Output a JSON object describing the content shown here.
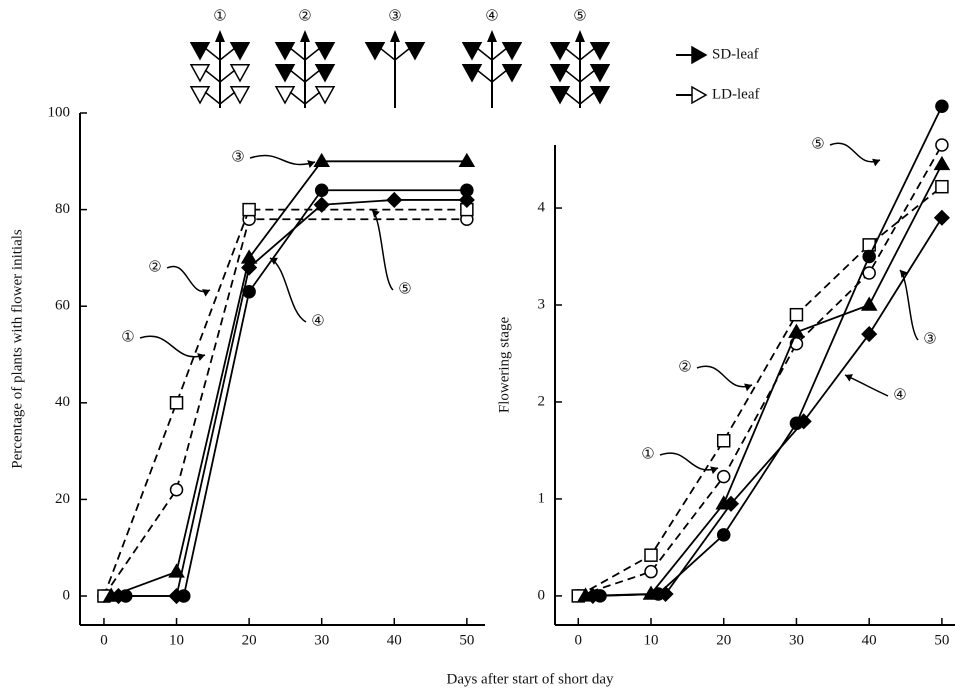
{
  "chart_data": [
    {
      "type": "line",
      "ylabel": "Percentage of plants with flower initials",
      "xlabel": "Days after start of short day",
      "xlim": [
        -3.3,
        52.5
      ],
      "xticks": [
        0,
        10,
        20,
        30,
        40,
        50
      ],
      "ylim": [
        -6,
        100
      ],
      "yticks": [
        0,
        20,
        40,
        60,
        80,
        100
      ],
      "series": [
        {
          "name": "①",
          "color": "#000000",
          "marker": "open-circle",
          "line_style": "dashed",
          "x": [
            0,
            10,
            20,
            50
          ],
          "values": [
            0,
            22,
            78,
            78
          ]
        },
        {
          "name": "②",
          "color": "#000000",
          "marker": "open-square",
          "line_style": "dashed",
          "x": [
            0,
            10,
            20,
            50
          ],
          "values": [
            0,
            40,
            80,
            80
          ]
        },
        {
          "name": "③",
          "color": "#000000",
          "marker": "triangle",
          "line_style": "solid",
          "x": [
            1,
            10,
            20,
            30,
            50
          ],
          "values": [
            0,
            5,
            70,
            90,
            90
          ]
        },
        {
          "name": "④",
          "color": "#000000",
          "marker": "diamond",
          "line_style": "solid",
          "x": [
            2,
            10,
            20,
            30,
            40,
            50
          ],
          "values": [
            0,
            0,
            68,
            81,
            82,
            82
          ]
        },
        {
          "name": "⑤",
          "color": "#000000",
          "marker": "circle",
          "line_style": "solid",
          "x": [
            3,
            11,
            20,
            30,
            50
          ],
          "values": [
            0,
            0,
            63,
            84,
            84
          ]
        }
      ],
      "annotations": [
        "③",
        "②",
        "①",
        "④",
        "⑤"
      ]
    },
    {
      "type": "line",
      "ylabel": "Flowering stage",
      "xlim": [
        -3.2,
        51.8
      ],
      "xticks": [
        0,
        10,
        20,
        30,
        40,
        50
      ],
      "ylim": [
        -0.3,
        4.65
      ],
      "yticks": [
        0,
        1,
        2,
        3,
        4
      ],
      "series": [
        {
          "name": "①",
          "color": "#000000",
          "marker": "open-circle",
          "line_style": "dashed",
          "x": [
            0,
            10,
            20,
            30,
            40,
            50
          ],
          "values": [
            0,
            0.25,
            1.23,
            2.6,
            3.33,
            4.65
          ]
        },
        {
          "name": "②",
          "color": "#000000",
          "marker": "open-square",
          "line_style": "dashed",
          "x": [
            0,
            10,
            20,
            30,
            40,
            50
          ],
          "values": [
            0,
            0.42,
            1.6,
            2.9,
            3.62,
            4.22
          ]
        },
        {
          "name": "③",
          "color": "#000000",
          "marker": "triangle",
          "line_style": "solid",
          "x": [
            1,
            10,
            20,
            30,
            40,
            50
          ],
          "values": [
            0,
            0.02,
            0.95,
            2.72,
            3.0,
            4.45
          ]
        },
        {
          "name": "④",
          "color": "#000000",
          "marker": "diamond",
          "line_style": "solid",
          "x": [
            2,
            12,
            21,
            31,
            40,
            50
          ],
          "values": [
            0,
            0.02,
            0.95,
            1.8,
            2.7,
            3.9
          ]
        },
        {
          "name": "⑤",
          "color": "#000000",
          "marker": "circle",
          "line_style": "solid",
          "x": [
            3,
            11,
            20,
            30,
            40,
            50
          ],
          "values": [
            0,
            0.02,
            0.63,
            1.78,
            3.5,
            5.05
          ]
        }
      ],
      "annotations": [
        "⑤",
        "②",
        "①",
        "③",
        "④"
      ]
    }
  ],
  "leaf_legend": [
    "SD-leaf",
    "LD-leaf"
  ]
}
